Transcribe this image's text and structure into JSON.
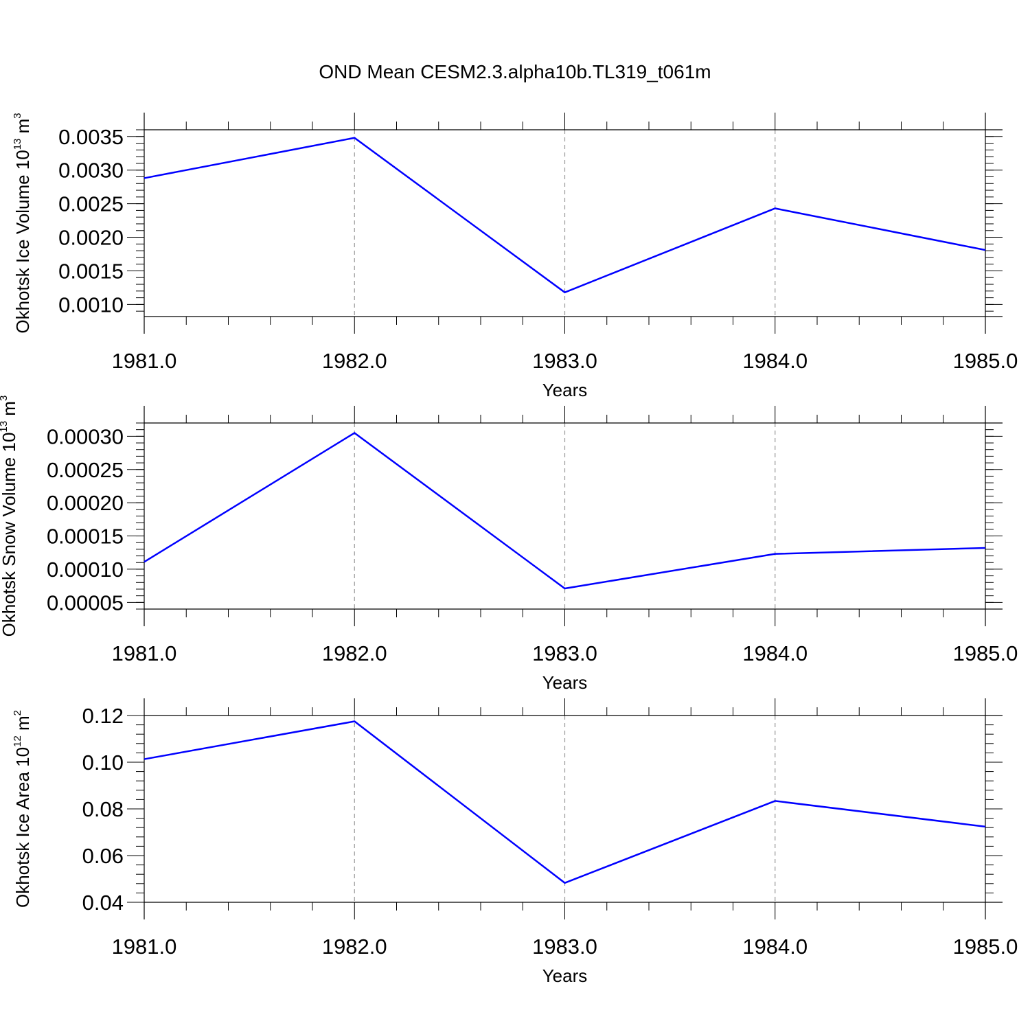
{
  "figure_title": "OND Mean CESM2.3.alpha10b.TL319_t061m",
  "chart_data": [
    {
      "type": "line",
      "ylabel": {
        "main": "Okhotsk Ice Volume 10",
        "exp": "13",
        "unit": " m",
        "unit_exp": "3"
      },
      "xlabel": "Years",
      "xlim": [
        1981.0,
        1985.0
      ],
      "ylim": [
        0.00082,
        0.0036
      ],
      "x": [
        1981.0,
        1982.0,
        1983.0,
        1984.0,
        1985.0
      ],
      "x_tick_labels": [
        "1981.0",
        "1982.0",
        "1983.0",
        "1984.0",
        "1985.0"
      ],
      "y_ticks": [
        0.001,
        0.0015,
        0.002,
        0.0025,
        0.003,
        0.0035
      ],
      "y_tick_labels": [
        "0.0010",
        "0.0015",
        "0.0020",
        "0.0025",
        "0.0030",
        "0.0035"
      ],
      "y_minor_step": 0.0001,
      "series": [
        {
          "values": [
            0.00288,
            0.00348,
            0.00118,
            0.00243,
            0.00181
          ],
          "color": "#0000ff"
        }
      ],
      "grid": "vertical dashed at major x ticks"
    },
    {
      "type": "line",
      "ylabel": {
        "main": "Okhotsk Snow Volume 10",
        "exp": "13",
        "unit": " m",
        "unit_exp": "3"
      },
      "xlabel": "Years",
      "xlim": [
        1981.0,
        1985.0
      ],
      "ylim": [
        4e-05,
        0.00032
      ],
      "x": [
        1981.0,
        1982.0,
        1983.0,
        1984.0,
        1985.0
      ],
      "x_tick_labels": [
        "1981.0",
        "1982.0",
        "1983.0",
        "1984.0",
        "1985.0"
      ],
      "y_ticks": [
        5e-05,
        0.0001,
        0.00015,
        0.0002,
        0.00025,
        0.0003
      ],
      "y_tick_labels": [
        "0.00005",
        "0.00010",
        "0.00015",
        "0.00020",
        "0.00025",
        "0.00030"
      ],
      "y_minor_step": 1e-05,
      "series": [
        {
          "values": [
            0.000111,
            0.000305,
            7.1e-05,
            0.000123,
            0.000132
          ],
          "color": "#0000ff"
        }
      ],
      "grid": "vertical dashed at major x ticks"
    },
    {
      "type": "line",
      "ylabel": {
        "main": "Okhotsk Ice Area 10",
        "exp": "12",
        "unit": " m",
        "unit_exp": "2"
      },
      "xlabel": "Years",
      "xlim": [
        1981.0,
        1985.0
      ],
      "ylim": [
        0.04,
        0.12
      ],
      "x": [
        1981.0,
        1982.0,
        1983.0,
        1984.0,
        1985.0
      ],
      "x_tick_labels": [
        "1981.0",
        "1982.0",
        "1983.0",
        "1984.0",
        "1985.0"
      ],
      "y_ticks": [
        0.04,
        0.06,
        0.08,
        0.1,
        0.12
      ],
      "y_tick_labels": [
        "0.04",
        "0.06",
        "0.08",
        "0.10",
        "0.12"
      ],
      "y_minor_step": 0.004,
      "series": [
        {
          "values": [
            0.1013,
            0.1175,
            0.0483,
            0.0834,
            0.0724
          ],
          "color": "#0000ff"
        }
      ],
      "grid": "vertical dashed at major x ticks"
    }
  ]
}
